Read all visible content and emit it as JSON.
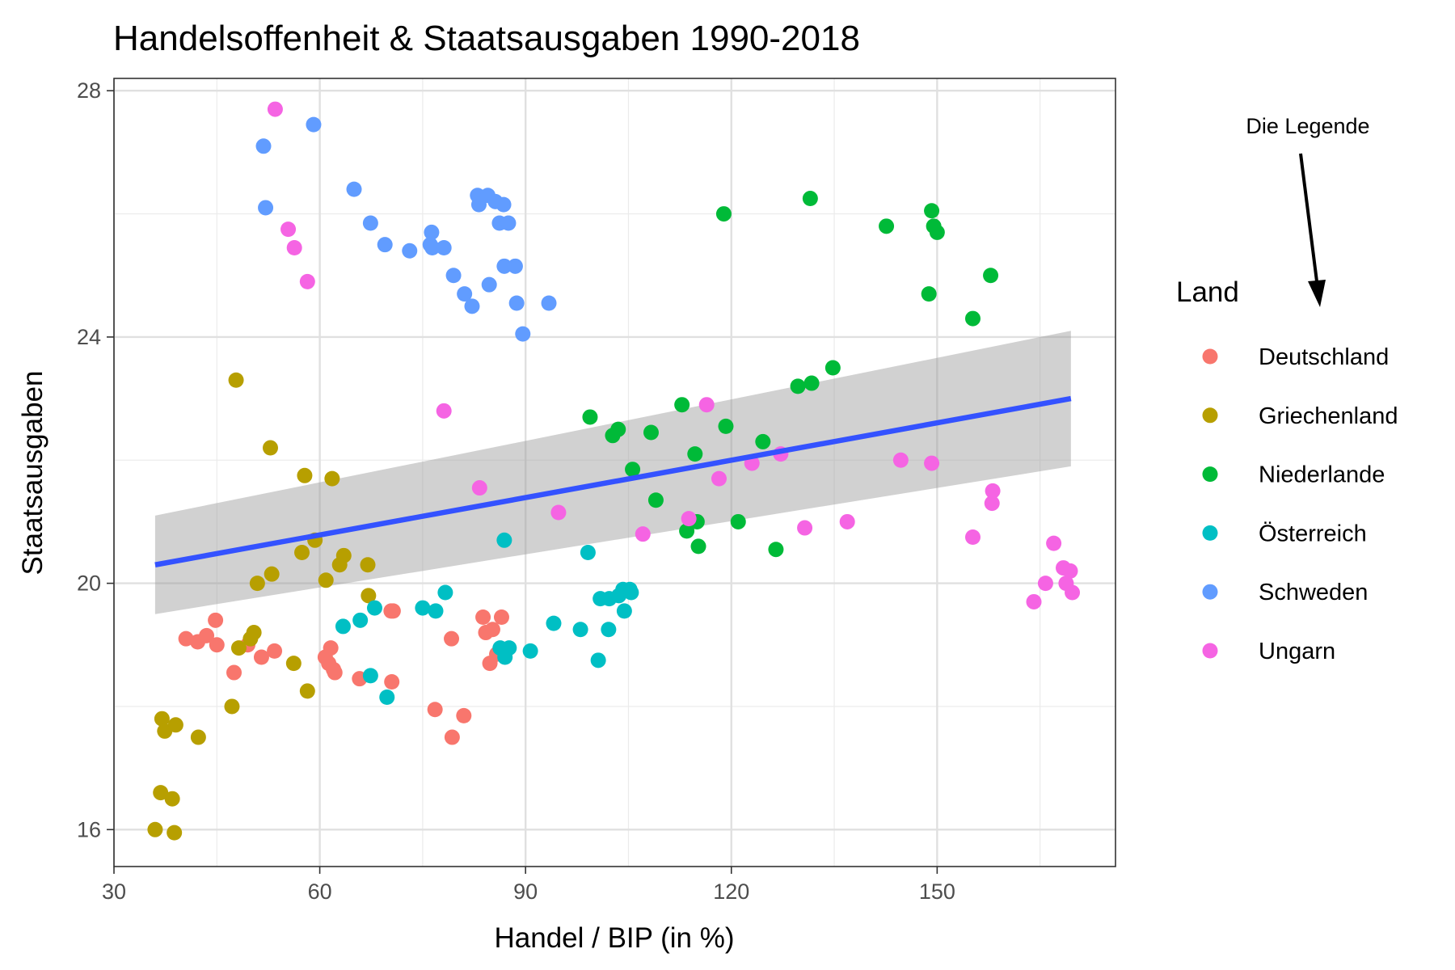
{
  "chart_data": {
    "type": "scatter",
    "title": "Handelsoffenheit & Staatsausgaben 1990-2018",
    "xlabel": "Handel / BIP (in %)",
    "ylabel": "Staatsausgaben",
    "xlim": [
      30,
      176
    ],
    "ylim": [
      15.4,
      28.2
    ],
    "x_ticks": [
      30,
      60,
      90,
      120,
      150
    ],
    "y_ticks": [
      16,
      20,
      24,
      28
    ],
    "grid": true,
    "legend": {
      "title": "Land",
      "position": "right"
    },
    "annotation": "Die Legende",
    "trend": {
      "type": "linear",
      "x": [
        36,
        169.5
      ],
      "y": [
        20.3,
        23.0
      ],
      "ci_lower": [
        19.5,
        21.9
      ],
      "ci_upper": [
        21.1,
        24.1
      ]
    },
    "series": [
      {
        "name": "Deutschland",
        "color": "#F8766D",
        "points": [
          [
            40.5,
            19.1
          ],
          [
            42.2,
            19.05
          ],
          [
            43.5,
            19.15
          ],
          [
            44.8,
            19.4
          ],
          [
            45,
            19.0
          ],
          [
            47.5,
            18.55
          ],
          [
            49.5,
            19.0
          ],
          [
            51.5,
            18.8
          ],
          [
            53.4,
            18.9
          ],
          [
            60.8,
            18.8
          ],
          [
            61.3,
            18.7
          ],
          [
            61.6,
            18.95
          ],
          [
            62,
            18.6
          ],
          [
            62.2,
            18.55
          ],
          [
            65.8,
            18.45
          ],
          [
            70.4,
            19.55
          ],
          [
            70.5,
            18.4
          ],
          [
            70.7,
            19.55
          ],
          [
            76.8,
            17.95
          ],
          [
            79.2,
            19.1
          ],
          [
            79.3,
            17.5
          ],
          [
            81,
            17.85
          ],
          [
            83.8,
            19.45
          ],
          [
            84.2,
            19.2
          ],
          [
            84.8,
            18.7
          ],
          [
            85.2,
            19.25
          ],
          [
            85.8,
            18.85
          ],
          [
            86.5,
            19.45
          ]
        ]
      },
      {
        "name": "Griechenland",
        "color": "#B79F00",
        "points": [
          [
            36,
            16
          ],
          [
            36.8,
            16.6
          ],
          [
            37,
            17.8
          ],
          [
            37.4,
            17.6
          ],
          [
            38.5,
            16.5
          ],
          [
            38.8,
            15.95
          ],
          [
            39,
            17.7
          ],
          [
            42.3,
            17.5
          ],
          [
            47.2,
            18
          ],
          [
            47.8,
            23.3
          ],
          [
            48.2,
            18.95
          ],
          [
            49.9,
            19.1
          ],
          [
            50.4,
            19.2
          ],
          [
            50.9,
            20
          ],
          [
            52.8,
            22.2
          ],
          [
            53,
            20.15
          ],
          [
            56.2,
            18.7
          ],
          [
            57.4,
            20.5
          ],
          [
            57.8,
            21.75
          ],
          [
            58.2,
            18.25
          ],
          [
            59.3,
            20.7
          ],
          [
            60.9,
            20.05
          ],
          [
            61.8,
            21.7
          ],
          [
            62.9,
            20.3
          ],
          [
            63.5,
            20.45
          ],
          [
            67,
            20.3
          ],
          [
            67.1,
            19.8
          ]
        ]
      },
      {
        "name": "Niederlande",
        "color": "#00BA38",
        "points": [
          [
            99.4,
            22.7
          ],
          [
            102.7,
            22.4
          ],
          [
            103.5,
            22.5
          ],
          [
            105.6,
            21.85
          ],
          [
            108.3,
            22.45
          ],
          [
            109,
            21.35
          ],
          [
            112.8,
            22.9
          ],
          [
            113.5,
            20.85
          ],
          [
            114.7,
            22.1
          ],
          [
            115,
            21.0
          ],
          [
            115.2,
            20.6
          ],
          [
            118.9,
            26
          ],
          [
            119.2,
            22.55
          ],
          [
            121,
            21.0
          ],
          [
            124.6,
            22.3
          ],
          [
            126.5,
            20.55
          ],
          [
            129.7,
            23.2
          ],
          [
            131.5,
            26.25
          ],
          [
            131.7,
            23.25
          ],
          [
            134.8,
            23.5
          ],
          [
            142.6,
            25.8
          ],
          [
            148.8,
            24.7
          ],
          [
            149.2,
            26.05
          ],
          [
            149.5,
            25.8
          ],
          [
            150,
            25.7
          ],
          [
            155.2,
            24.3
          ],
          [
            157.8,
            25
          ]
        ]
      },
      {
        "name": "Österreich",
        "color": "#00BFC4",
        "points": [
          [
            63.4,
            19.3
          ],
          [
            65.9,
            19.4
          ],
          [
            67.4,
            18.5
          ],
          [
            68,
            19.6
          ],
          [
            69.8,
            18.15
          ],
          [
            75,
            19.6
          ],
          [
            76.9,
            19.55
          ],
          [
            78.3,
            19.85
          ],
          [
            86.3,
            18.95
          ],
          [
            86.9,
            20.7
          ],
          [
            87,
            18.8
          ],
          [
            87.6,
            18.95
          ],
          [
            90.7,
            18.9
          ],
          [
            94.1,
            19.35
          ],
          [
            98,
            19.25
          ],
          [
            99.1,
            20.5
          ],
          [
            100.6,
            18.75
          ],
          [
            100.9,
            19.75
          ],
          [
            102.1,
            19.25
          ],
          [
            102.2,
            19.75
          ],
          [
            103.6,
            19.8
          ],
          [
            104.2,
            19.9
          ],
          [
            104.4,
            19.55
          ],
          [
            105.2,
            19.9
          ],
          [
            105.4,
            19.85
          ]
        ]
      },
      {
        "name": "Schweden",
        "color": "#619CFF",
        "points": [
          [
            51.8,
            27.1
          ],
          [
            52.1,
            26.1
          ],
          [
            59.1,
            27.45
          ],
          [
            65,
            26.4
          ],
          [
            67.4,
            25.85
          ],
          [
            69.5,
            25.5
          ],
          [
            73.1,
            25.4
          ],
          [
            76.1,
            25.5
          ],
          [
            76.3,
            25.7
          ],
          [
            76.4,
            25.45
          ],
          [
            78.1,
            25.45
          ],
          [
            79.5,
            25
          ],
          [
            81.1,
            24.7
          ],
          [
            82.2,
            24.5
          ],
          [
            83,
            26.3
          ],
          [
            83.2,
            26.15
          ],
          [
            84.5,
            26.3
          ],
          [
            84.7,
            24.85
          ],
          [
            85.6,
            26.2
          ],
          [
            86.2,
            25.85
          ],
          [
            86.8,
            26.15
          ],
          [
            86.9,
            25.15
          ],
          [
            87.5,
            25.85
          ],
          [
            88.5,
            25.15
          ],
          [
            88.7,
            24.55
          ],
          [
            89.6,
            24.05
          ],
          [
            93.4,
            24.55
          ]
        ]
      },
      {
        "name": "Ungarn",
        "color": "#F564E3",
        "points": [
          [
            53.5,
            27.7
          ],
          [
            55.4,
            25.75
          ],
          [
            56.3,
            25.45
          ],
          [
            58.2,
            24.9
          ],
          [
            78.1,
            22.8
          ],
          [
            83.3,
            21.55
          ],
          [
            94.8,
            21.15
          ],
          [
            107.1,
            20.8
          ],
          [
            113.8,
            21.05
          ],
          [
            116.4,
            22.9
          ],
          [
            118.2,
            21.7
          ],
          [
            123,
            21.95
          ],
          [
            127.2,
            22.1
          ],
          [
            130.7,
            20.9
          ],
          [
            136.9,
            21.0
          ],
          [
            144.7,
            22.0
          ],
          [
            149.2,
            21.95
          ],
          [
            155.2,
            20.75
          ],
          [
            158,
            21.3
          ],
          [
            158.1,
            21.5
          ],
          [
            164.1,
            19.7
          ],
          [
            165.8,
            20
          ],
          [
            167,
            20.65
          ],
          [
            168.4,
            20.25
          ],
          [
            168.8,
            20
          ],
          [
            169.4,
            20.2
          ],
          [
            169.7,
            19.85
          ]
        ]
      }
    ]
  }
}
